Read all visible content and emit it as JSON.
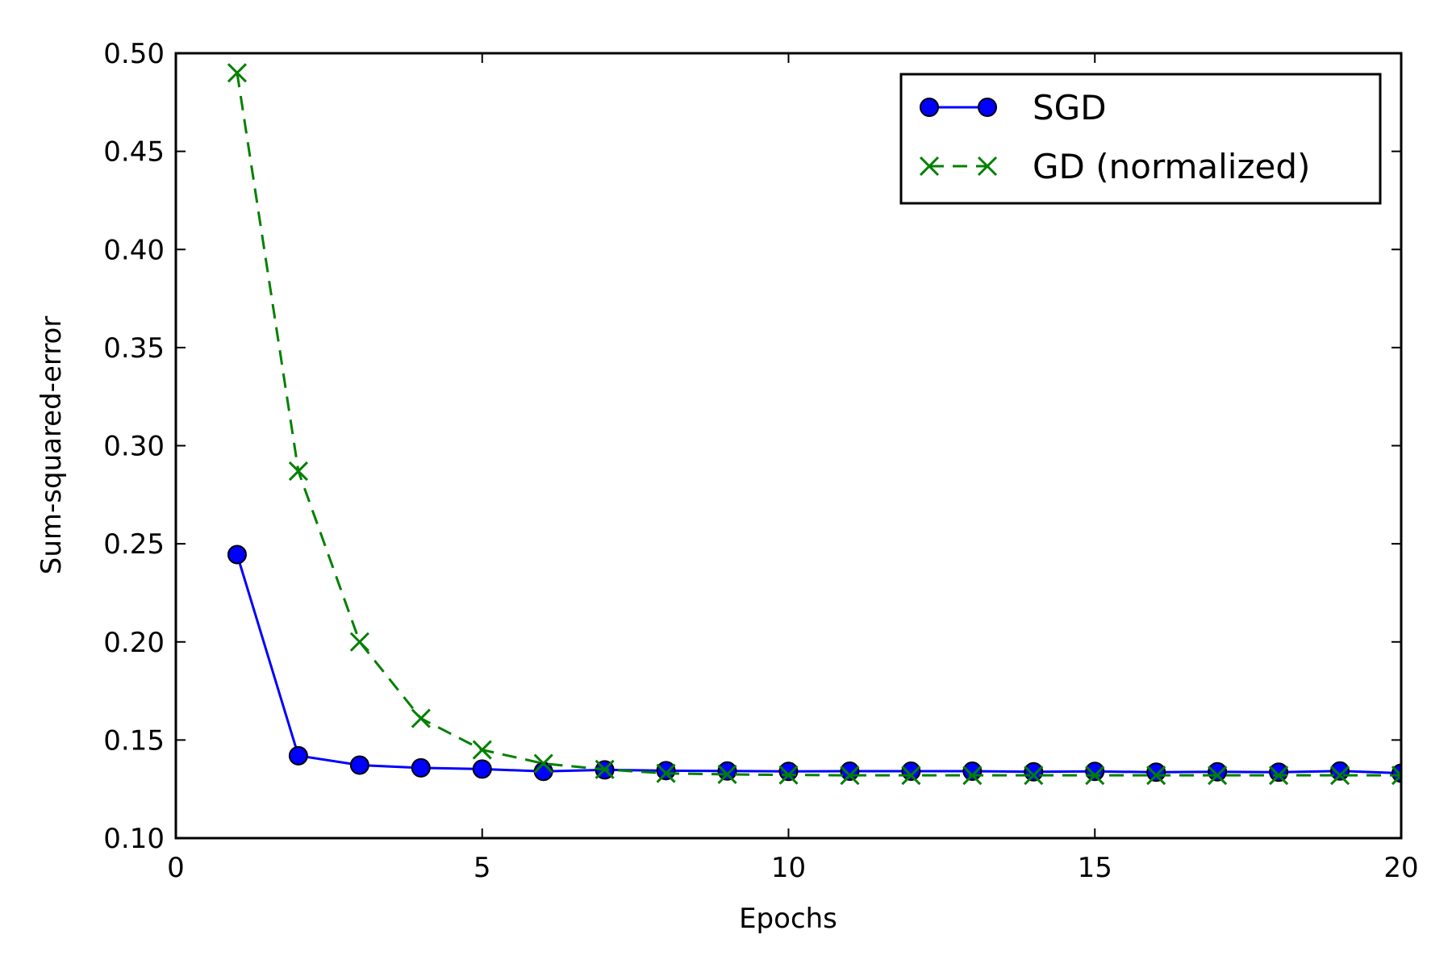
{
  "chart_data": {
    "type": "line",
    "xlabel": "Epochs",
    "ylabel": "Sum-squared-error",
    "xlim": [
      0,
      20
    ],
    "ylim": [
      0.1,
      0.5
    ],
    "xticks": [
      0,
      5,
      10,
      15,
      20
    ],
    "xtick_labels": [
      "0",
      "5",
      "10",
      "15",
      "20"
    ],
    "yticks": [
      0.1,
      0.15,
      0.2,
      0.25,
      0.3,
      0.35,
      0.4,
      0.45,
      0.5
    ],
    "ytick_labels": [
      "0.10",
      "0.15",
      "0.20",
      "0.25",
      "0.30",
      "0.35",
      "0.40",
      "0.45",
      "0.50"
    ],
    "grid": false,
    "legend_position": "top-right",
    "series": [
      {
        "name": "SGD",
        "color": "#0000ff",
        "marker": "circle",
        "line_style": "solid",
        "x": [
          1,
          2,
          3,
          4,
          5,
          6,
          7,
          8,
          9,
          10,
          11,
          12,
          13,
          14,
          15,
          16,
          17,
          18,
          19,
          20
        ],
        "y": [
          0.2445,
          0.142,
          0.1372,
          0.1358,
          0.1352,
          0.134,
          0.1348,
          0.1344,
          0.1342,
          0.134,
          0.1341,
          0.1341,
          0.1341,
          0.1338,
          0.134,
          0.1336,
          0.1338,
          0.1336,
          0.1342,
          0.1331
        ]
      },
      {
        "name": "GD (normalized)",
        "color": "#008000",
        "marker": "x",
        "line_style": "dashed",
        "x": [
          1,
          2,
          3,
          4,
          5,
          6,
          7,
          8,
          9,
          10,
          11,
          12,
          13,
          14,
          15,
          16,
          17,
          18,
          19,
          20
        ],
        "y": [
          0.49,
          0.287,
          0.2,
          0.161,
          0.145,
          0.138,
          0.135,
          0.133,
          0.1325,
          0.1322,
          0.132,
          0.132,
          0.132,
          0.132,
          0.132,
          0.132,
          0.132,
          0.132,
          0.132,
          0.132
        ]
      }
    ]
  }
}
